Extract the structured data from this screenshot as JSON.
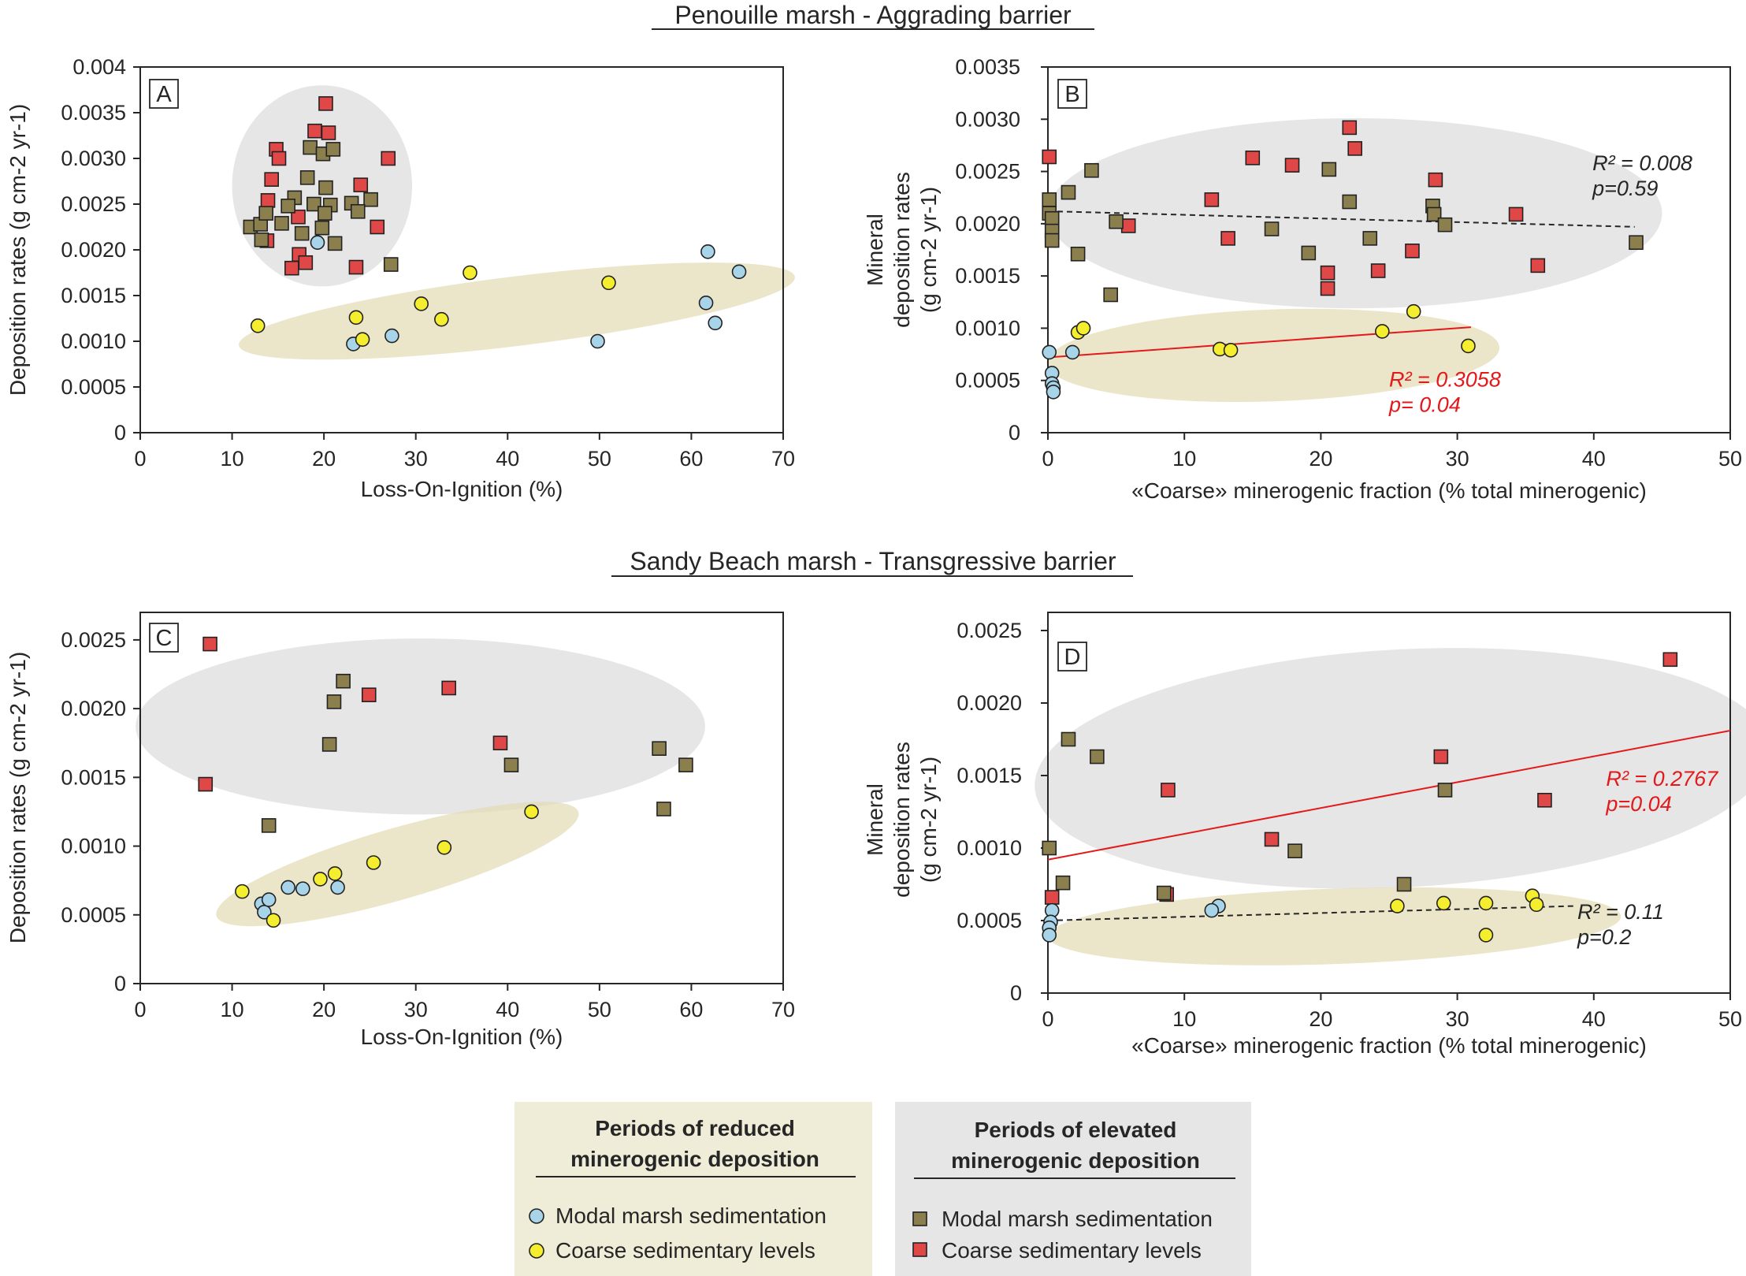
{
  "sections": [
    {
      "title": "Penouille marsh - Aggrading barrier"
    },
    {
      "title": "Sandy Beach marsh - Transgressive barrier"
    }
  ],
  "colors": {
    "modal_circle": "#a8d4ea",
    "coarse_circle": "#f4ee2e",
    "modal_square": "#8b7f4e",
    "coarse_square": "#e04848",
    "reduced_ellipse": "#e3ddb4",
    "elevated_ellipse": "#dcdcdc",
    "red_text": "#e31a1c",
    "dark_text": "#262626"
  },
  "legend": {
    "reduced": {
      "title_line1": "Periods of reduced",
      "title_line2": "minerogenic deposition",
      "modal": "Modal marsh sedimentation",
      "coarse": "Coarse sedimentary levels"
    },
    "elevated": {
      "title_line1": "Periods of elevated",
      "title_line2": "minerogenic deposition",
      "modal": "Modal marsh sedimentation",
      "coarse": "Coarse sedimentary levels"
    }
  },
  "chart_data": [
    {
      "panel": "A",
      "type": "scatter",
      "xlabel": "Loss-On-Ignition (%)",
      "ylabel": [
        "Deposition rates (g cm-2 yr-1)"
      ],
      "xlim": [
        0,
        70
      ],
      "ylim": [
        0,
        0.004
      ],
      "xticks": [
        "0",
        "10",
        "20",
        "30",
        "40",
        "50",
        "60",
        "70"
      ],
      "yticks": [
        "0",
        "0.0005",
        "0.0010",
        "0.0015",
        "0.0020",
        "0.0025",
        "0.0030",
        "0.0035",
        "0.004"
      ],
      "series": [
        {
          "group": "elevated",
          "kind": "coarse",
          "points": [
            [
              20.2,
              0.0036
            ],
            [
              19.0,
              0.0033
            ],
            [
              20.5,
              0.00328
            ],
            [
              14.8,
              0.0031
            ],
            [
              15.1,
              0.003
            ],
            [
              27.0,
              0.003
            ],
            [
              14.3,
              0.00277
            ],
            [
              24.0,
              0.00271
            ],
            [
              25.8,
              0.00225
            ],
            [
              13.9,
              0.00254
            ],
            [
              17.2,
              0.00236
            ],
            [
              13.8,
              0.0021
            ],
            [
              17.3,
              0.00195
            ],
            [
              18.0,
              0.00186
            ],
            [
              16.5,
              0.0018
            ],
            [
              23.5,
              0.00181
            ]
          ]
        },
        {
          "group": "elevated",
          "kind": "modal",
          "points": [
            [
              18.5,
              0.00312
            ],
            [
              19.9,
              0.00305
            ],
            [
              21.0,
              0.0031
            ],
            [
              18.2,
              0.00279
            ],
            [
              20.2,
              0.00268
            ],
            [
              16.8,
              0.00257
            ],
            [
              16.1,
              0.00248
            ],
            [
              18.9,
              0.0025
            ],
            [
              20.7,
              0.00249
            ],
            [
              23.0,
              0.00251
            ],
            [
              25.1,
              0.00255
            ],
            [
              12.0,
              0.00225
            ],
            [
              13.1,
              0.00228
            ],
            [
              13.7,
              0.0024
            ],
            [
              15.4,
              0.00229
            ],
            [
              17.6,
              0.00218
            ],
            [
              19.8,
              0.00224
            ],
            [
              20.1,
              0.0024
            ],
            [
              23.7,
              0.00242
            ],
            [
              13.2,
              0.00211
            ],
            [
              21.2,
              0.00207
            ],
            [
              27.3,
              0.00184
            ]
          ]
        },
        {
          "group": "reduced",
          "kind": "modal",
          "points": [
            [
              19.3,
              0.00208
            ],
            [
              61.8,
              0.00198
            ],
            [
              65.2,
              0.00176
            ],
            [
              61.6,
              0.00142
            ],
            [
              62.6,
              0.0012
            ],
            [
              27.4,
              0.00106
            ],
            [
              49.8,
              0.001
            ],
            [
              23.2,
              0.00097
            ]
          ]
        },
        {
          "group": "reduced",
          "kind": "coarse",
          "points": [
            [
              12.8,
              0.00117
            ],
            [
              23.5,
              0.00126
            ],
            [
              24.2,
              0.00102
            ],
            [
              30.6,
              0.00141
            ],
            [
              32.8,
              0.00124
            ],
            [
              35.9,
              0.00175
            ],
            [
              51.0,
              0.00164
            ]
          ]
        }
      ],
      "ellipses": [
        {
          "group": "elevated",
          "center": [
            19.8,
            0.0027
          ],
          "rx_data": 9.8,
          "ry_data": 0.0011,
          "angle": 0
        },
        {
          "group": "reduced",
          "center": [
            41,
            0.00133
          ],
          "rx_data": 30.5,
          "ry_data": 0.00038,
          "angle": -7
        }
      ],
      "fits": []
    },
    {
      "panel": "B",
      "type": "scatter",
      "xlabel": "«Coarse» minerogenic fraction (% total minerogenic)",
      "ylabel": [
        "Mineral",
        "deposition rates",
        "(g cm-2 yr-1)"
      ],
      "xlim": [
        0,
        50
      ],
      "ylim": [
        0,
        0.0035
      ],
      "xticks": [
        "0",
        "10",
        "20",
        "30",
        "40",
        "50"
      ],
      "yticks": [
        "0",
        "0.0005",
        "0.0010",
        "0.0015",
        "0.0020",
        "0.0025",
        "0.0030",
        "0.0035"
      ],
      "series": [
        {
          "group": "elevated",
          "kind": "coarse",
          "points": [
            [
              0.1,
              0.00264
            ],
            [
              5.9,
              0.00198
            ],
            [
              12.0,
              0.00223
            ],
            [
              13.2,
              0.00186
            ],
            [
              15.0,
              0.00263
            ],
            [
              17.9,
              0.00256
            ],
            [
              20.5,
              0.00153
            ],
            [
              20.5,
              0.00138
            ],
            [
              22.1,
              0.00292
            ],
            [
              22.5,
              0.00272
            ],
            [
              24.2,
              0.00155
            ],
            [
              26.7,
              0.00174
            ],
            [
              28.4,
              0.00242
            ],
            [
              34.3,
              0.00209
            ],
            [
              35.9,
              0.0016
            ]
          ]
        },
        {
          "group": "elevated",
          "kind": "modal",
          "points": [
            [
              0.1,
              0.00223
            ],
            [
              0.1,
              0.0021
            ],
            [
              0.3,
              0.00205
            ],
            [
              0.3,
              0.00193
            ],
            [
              0.3,
              0.00184
            ],
            [
              1.5,
              0.0023
            ],
            [
              2.2,
              0.00171
            ],
            [
              3.2,
              0.00251
            ],
            [
              4.6,
              0.00132
            ],
            [
              5.0,
              0.00202
            ],
            [
              16.4,
              0.00195
            ],
            [
              19.1,
              0.00172
            ],
            [
              20.6,
              0.00252
            ],
            [
              22.1,
              0.00221
            ],
            [
              23.6,
              0.00186
            ],
            [
              28.2,
              0.00217
            ],
            [
              28.3,
              0.00209
            ],
            [
              29.1,
              0.00199
            ],
            [
              43.1,
              0.00182
            ]
          ]
        },
        {
          "group": "reduced",
          "kind": "modal",
          "points": [
            [
              0.1,
              0.00077
            ],
            [
              0.3,
              0.00057
            ],
            [
              0.3,
              0.00047
            ],
            [
              0.4,
              0.00043
            ],
            [
              0.4,
              0.00039
            ],
            [
              1.8,
              0.00077
            ]
          ]
        },
        {
          "group": "reduced",
          "kind": "coarse",
          "points": [
            [
              2.2,
              0.00096
            ],
            [
              2.6,
              0.001
            ],
            [
              12.6,
              0.0008
            ],
            [
              13.4,
              0.00079
            ],
            [
              24.5,
              0.00097
            ],
            [
              26.8,
              0.00116
            ],
            [
              30.8,
              0.00083
            ]
          ]
        }
      ],
      "ellipses": [
        {
          "group": "elevated",
          "center": [
            22.5,
            0.0021
          ],
          "rx_data": 22.5,
          "ry_data": 0.00091,
          "angle": 0
        },
        {
          "group": "reduced",
          "center": [
            16.5,
            0.00074
          ],
          "rx_data": 16.6,
          "ry_data": 0.00044,
          "angle": -2
        }
      ],
      "fits": [
        {
          "color": "dark",
          "dash": true,
          "x": [
            0,
            43
          ],
          "y": [
            0.00212,
            0.00197
          ],
          "label_lines": [
            "R² = 0.008",
            "p=0.59"
          ],
          "label_anchor": [
            39.9,
            0.00251
          ]
        },
        {
          "color": "red",
          "dash": false,
          "x": [
            0,
            31
          ],
          "y": [
            0.00072,
            0.00101
          ],
          "label_lines": [
            "R² = 0.3058",
            "p= 0.04"
          ],
          "label_anchor": [
            25.0,
            0.00044
          ]
        }
      ]
    },
    {
      "panel": "C",
      "type": "scatter",
      "xlabel": "Loss-On-Ignition (%)",
      "ylabel": [
        "Deposition rates (g cm-2 yr-1)"
      ],
      "xlim": [
        0,
        70
      ],
      "ylim": [
        0,
        0.0028
      ],
      "xticks": [
        "0",
        "10",
        "20",
        "30",
        "40",
        "50",
        "60",
        "70"
      ],
      "yticks": [
        "0",
        "0.0005",
        "0.0010",
        "0.0015",
        "0.0020",
        "0.0025"
      ],
      "series": [
        {
          "group": "elevated",
          "kind": "coarse",
          "points": [
            [
              7.6,
              0.00247
            ],
            [
              7.1,
              0.00145
            ],
            [
              24.9,
              0.0021
            ],
            [
              33.6,
              0.00215
            ],
            [
              39.2,
              0.00175
            ]
          ]
        },
        {
          "group": "elevated",
          "kind": "modal",
          "points": [
            [
              20.6,
              0.00174
            ],
            [
              21.1,
              0.00205
            ],
            [
              22.1,
              0.0022
            ],
            [
              14.0,
              0.00115
            ],
            [
              40.4,
              0.00159
            ],
            [
              56.5,
              0.00171
            ],
            [
              59.4,
              0.00159
            ],
            [
              57.0,
              0.00127
            ]
          ]
        },
        {
          "group": "reduced",
          "kind": "modal",
          "points": [
            [
              13.2,
              0.00058
            ],
            [
              13.5,
              0.00052
            ],
            [
              14.0,
              0.00061
            ],
            [
              16.1,
              0.0007
            ],
            [
              17.7,
              0.00069
            ],
            [
              21.5,
              0.0007
            ]
          ]
        },
        {
          "group": "reduced",
          "kind": "coarse",
          "points": [
            [
              11.1,
              0.00067
            ],
            [
              14.5,
              0.00046
            ],
            [
              19.6,
              0.00076
            ],
            [
              21.2,
              0.0008
            ],
            [
              25.4,
              0.00088
            ],
            [
              33.1,
              0.00099
            ],
            [
              42.6,
              0.00125
            ]
          ]
        }
      ],
      "ellipses": [
        {
          "group": "elevated",
          "center": [
            30.5,
            0.00187
          ],
          "rx_data": 31.0,
          "ry_data": 0.00064,
          "angle": 0
        },
        {
          "group": "reduced",
          "center": [
            28.0,
            0.00087
          ],
          "rx_data": 20.5,
          "ry_data": 0.00026,
          "angle": -16
        }
      ],
      "fits": []
    },
    {
      "panel": "D",
      "type": "scatter",
      "xlabel": "«Coarse» minerogenic fraction (% total minerogenic)",
      "ylabel": [
        "Mineral",
        "deposition rates",
        "(g cm-2 yr-1)"
      ],
      "xlim": [
        0,
        50
      ],
      "ylim": [
        0,
        0.0025
      ],
      "xticks": [
        "0",
        "10",
        "20",
        "30",
        "40",
        "50"
      ],
      "yticks": [
        "0",
        "0.0005",
        "0.0010",
        "0.0015",
        "0.0020",
        "0.0025"
      ],
      "series": [
        {
          "group": "elevated",
          "kind": "coarse",
          "points": [
            [
              45.6,
              0.0023
            ],
            [
              28.8,
              0.00163
            ],
            [
              8.8,
              0.0014
            ],
            [
              36.4,
              0.00133
            ],
            [
              16.4,
              0.00106
            ],
            [
              0.3,
              0.00066
            ],
            [
              8.7,
              0.00068
            ]
          ]
        },
        {
          "group": "elevated",
          "kind": "modal",
          "points": [
            [
              1.5,
              0.00175
            ],
            [
              3.6,
              0.00163
            ],
            [
              29.1,
              0.0014
            ],
            [
              18.1,
              0.00098
            ],
            [
              0.1,
              0.001
            ],
            [
              1.1,
              0.00076
            ],
            [
              26.1,
              0.00075
            ],
            [
              8.5,
              0.00069
            ]
          ]
        },
        {
          "group": "reduced",
          "kind": "modal",
          "points": [
            [
              12.5,
              0.0006
            ],
            [
              12.0,
              0.00057
            ],
            [
              0.3,
              0.00057
            ],
            [
              0.2,
              0.00049
            ],
            [
              0.1,
              0.00045
            ],
            [
              0.1,
              0.0004
            ]
          ]
        },
        {
          "group": "reduced",
          "kind": "coarse",
          "points": [
            [
              25.6,
              0.0006
            ],
            [
              29.0,
              0.00062
            ],
            [
              32.1,
              0.00062
            ],
            [
              32.1,
              0.0004
            ],
            [
              35.5,
              0.00067
            ],
            [
              35.8,
              0.00061
            ]
          ]
        }
      ],
      "ellipses": [
        {
          "group": "elevated",
          "center": [
            26.0,
            0.00155
          ],
          "rx_data": 27.0,
          "ry_data": 0.00082,
          "angle": -3
        },
        {
          "group": "reduced",
          "center": [
            21.0,
            0.00046
          ],
          "rx_data": 21.0,
          "ry_data": 0.00026,
          "angle": -2
        }
      ],
      "fits": [
        {
          "color": "red",
          "dash": false,
          "x": [
            0,
            50
          ],
          "y": [
            0.00092,
            0.00181
          ],
          "label_lines": [
            "R² = 0.2767",
            "p=0.04"
          ],
          "label_anchor": [
            40.9,
            0.00143
          ]
        },
        {
          "color": "dark",
          "dash": true,
          "x": [
            0,
            38.5
          ],
          "y": [
            0.0005,
            0.0006
          ],
          "label_lines": [
            "R² = 0.11",
            "p=0.2"
          ],
          "label_anchor": [
            38.8,
            0.00051
          ]
        }
      ]
    }
  ]
}
